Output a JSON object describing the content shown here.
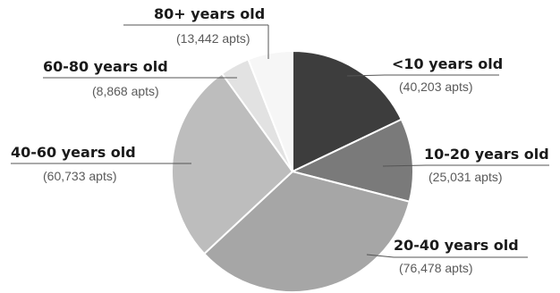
{
  "chart_data": {
    "type": "pie",
    "title": "",
    "slices": [
      {
        "label": "<10 years old",
        "count_label": "(40,203 apts)",
        "value": 40203,
        "color": "#3d3d3d"
      },
      {
        "label": "10-20 years old",
        "count_label": "(25,031 apts)",
        "value": 25031,
        "color": "#7a7a7a"
      },
      {
        "label": "20-40 years old",
        "count_label": "(76,478 apts)",
        "value": 76478,
        "color": "#a6a6a6"
      },
      {
        "label": "40-60 years old",
        "count_label": "(60,733 apts)",
        "value": 60733,
        "color": "#bdbdbd"
      },
      {
        "label": "60-80 years old",
        "count_label": "(8,868 apts)",
        "value": 8868,
        "color": "#e2e2e2"
      },
      {
        "label": "80+ years old",
        "count_label": "(13,442 apts)",
        "value": 13442,
        "color": "#f6f6f6"
      }
    ]
  }
}
